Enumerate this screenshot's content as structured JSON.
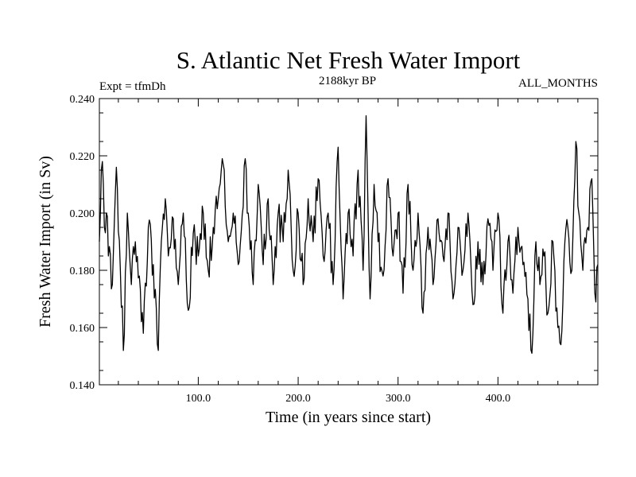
{
  "chart_data": {
    "type": "line",
    "title": "S. Atlantic Net Fresh Water Import",
    "left_annotation": "Expt = tfmDh",
    "center_annotation": "2188kyr BP",
    "right_annotation": "ALL_MONTHS",
    "xlabel": "Time (in years since start)",
    "ylabel": "Fresh Water Import (in Sv)",
    "xlim": [
      1,
      500
    ],
    "ylim": [
      0.14,
      0.24
    ],
    "x_ticks": [
      100,
      200,
      300,
      400
    ],
    "x_tick_labels": [
      "100.0",
      "200.0",
      "300.0",
      "400.0"
    ],
    "y_ticks": [
      0.14,
      0.16,
      0.18,
      0.2,
      0.22,
      0.24
    ],
    "y_tick_labels": [
      "0.140",
      "0.160",
      "0.180",
      "0.200",
      "0.220",
      "0.240"
    ],
    "grid": false,
    "series": [
      {
        "name": "Net fresh water import",
        "color": "#000000",
        "anchors_x": [
          1,
          4,
          6,
          8,
          10,
          14,
          18,
          22,
          25,
          29,
          33,
          37,
          41,
          45,
          50,
          55,
          60,
          63,
          67,
          70,
          75,
          80,
          85,
          90,
          95,
          100,
          105,
          110,
          115,
          120,
          125,
          130,
          135,
          140,
          147,
          150,
          155,
          160,
          165,
          170,
          175,
          180,
          185,
          190,
          195,
          200,
          205,
          210,
          215,
          220,
          225,
          230,
          235,
          240,
          245,
          250,
          255,
          260,
          265,
          268,
          272,
          276,
          280,
          285,
          290,
          295,
          300,
          305,
          310,
          315,
          320,
          325,
          330,
          335,
          340,
          345,
          350,
          355,
          360,
          365,
          370,
          375,
          380,
          385,
          390,
          395,
          400,
          405,
          410,
          415,
          420,
          425,
          430,
          434,
          438,
          442,
          446,
          450,
          455,
          460,
          463,
          467,
          470,
          474,
          478,
          481,
          485,
          490,
          494,
          497,
          500
        ],
        "anchors_y": [
          0.19,
          0.218,
          0.195,
          0.2,
          0.185,
          0.175,
          0.216,
          0.18,
          0.152,
          0.2,
          0.175,
          0.19,
          0.178,
          0.158,
          0.195,
          0.182,
          0.152,
          0.19,
          0.205,
          0.185,
          0.198,
          0.175,
          0.2,
          0.166,
          0.193,
          0.185,
          0.2,
          0.18,
          0.195,
          0.205,
          0.217,
          0.19,
          0.2,
          0.182,
          0.219,
          0.2,
          0.175,
          0.21,
          0.182,
          0.205,
          0.175,
          0.2,
          0.19,
          0.215,
          0.18,
          0.2,
          0.175,
          0.205,
          0.19,
          0.212,
          0.185,
          0.2,
          0.175,
          0.223,
          0.17,
          0.2,
          0.185,
          0.215,
          0.18,
          0.234,
          0.17,
          0.21,
          0.19,
          0.178,
          0.212,
          0.185,
          0.2,
          0.172,
          0.21,
          0.18,
          0.2,
          0.165,
          0.195,
          0.175,
          0.198,
          0.185,
          0.2,
          0.17,
          0.195,
          0.18,
          0.2,
          0.168,
          0.19,
          0.175,
          0.198,
          0.18,
          0.2,
          0.165,
          0.19,
          0.172,
          0.195,
          0.182,
          0.17,
          0.151,
          0.19,
          0.175,
          0.185,
          0.165,
          0.19,
          0.16,
          0.154,
          0.19,
          0.195,
          0.18,
          0.225,
          0.2,
          0.18,
          0.195,
          0.212,
          0.172,
          0.182
        ]
      }
    ]
  }
}
